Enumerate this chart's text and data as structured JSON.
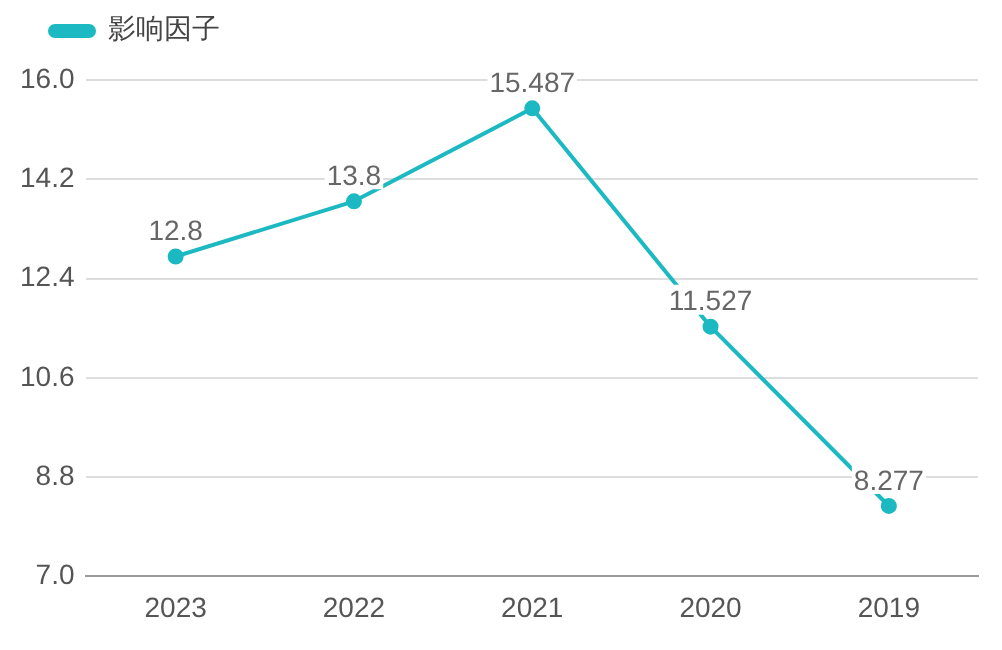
{
  "chart_data": {
    "type": "line",
    "categories": [
      "2023",
      "2022",
      "2021",
      "2020",
      "2019"
    ],
    "series": [
      {
        "name": "影响因子",
        "color": "#1cb9c3",
        "values": [
          12.8,
          13.8,
          15.487,
          11.527,
          8.277
        ],
        "value_labels": [
          "12.8",
          "13.8",
          "15.487",
          "11.527",
          "8.277"
        ]
      }
    ],
    "ylim": [
      7,
      16
    ],
    "yticks": [
      {
        "value": 7,
        "label": "7.0"
      },
      {
        "value": 8.8,
        "label": "8.8"
      },
      {
        "value": 10.6,
        "label": "10.6"
      },
      {
        "value": 12.4,
        "label": "12.4"
      },
      {
        "value": 14.2,
        "label": "14.2"
      },
      {
        "value": 16,
        "label": "16.0"
      }
    ],
    "grid": "y",
    "legend": "top left",
    "marker": "circle",
    "line_style": "solid"
  }
}
